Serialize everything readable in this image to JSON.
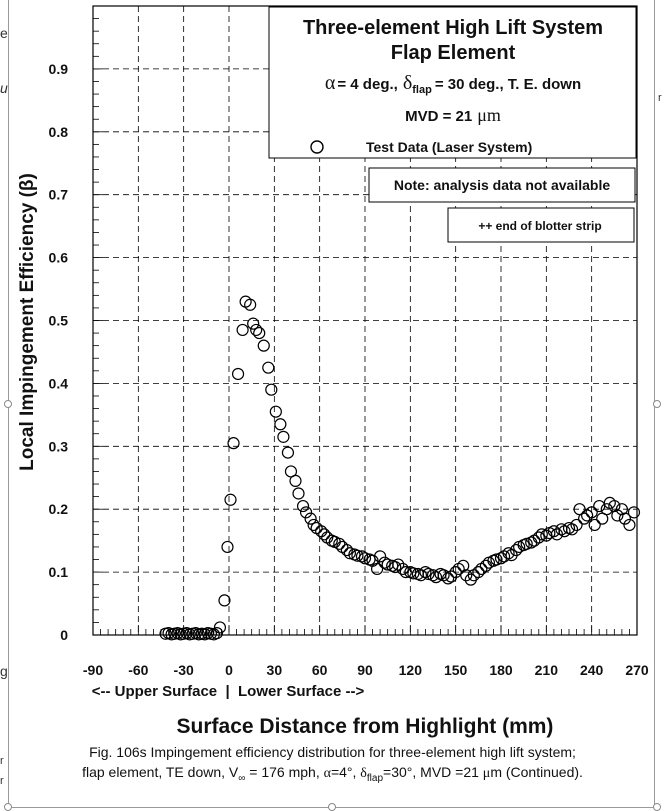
{
  "chart_data": {
    "type": "scatter",
    "title": [
      "Three-element High Lift System",
      "Flap Element"
    ],
    "conditions": {
      "alpha_symbol": "α",
      "alpha_value": "= 4 deg.,",
      "delta_symbol": "δ",
      "delta_sub": "flap",
      "delta_value": "= 30 deg., T. E. down",
      "mvd": "MVD = 21",
      "mvd_unit": "μm"
    },
    "legend": [
      {
        "marker": "open-circle",
        "label": "Test Data (Laser System)",
        "placement": "top-right"
      }
    ],
    "notes": [
      "Note: analysis data not available",
      "++ end of blotter strip"
    ],
    "xlabel": "Surface Distance from Highlight (mm)",
    "xsublabel": "<-- Upper Surface  |  Lower Surface -->",
    "ylabel": "Local Impingement Efficiency (β)",
    "xlim": [
      -90,
      270
    ],
    "ylim": [
      0,
      1
    ],
    "xticks": [
      -90,
      -60,
      -30,
      0,
      30,
      60,
      90,
      120,
      150,
      180,
      210,
      240,
      270
    ],
    "yticks": [
      0,
      0.1,
      0.2,
      0.3,
      0.4,
      0.5,
      0.6,
      0.7,
      0.8,
      0.9
    ],
    "ytick_labels": [
      "0",
      "0.1",
      "0.2",
      "0.3",
      "0.4",
      "0.5",
      "0.6",
      "0.7",
      "0.8",
      "0.9"
    ],
    "grid": true,
    "series": [
      {
        "name": "Test Data (Laser System)",
        "marker": "open-circle",
        "x": [
          -42,
          -40,
          -38,
          -36,
          -34,
          -32,
          -30,
          -28,
          -26,
          -24,
          -22,
          -20,
          -18,
          -16,
          -14,
          -12,
          -10,
          -8,
          -6,
          -3,
          -1,
          1,
          3,
          6,
          9,
          11,
          14,
          16,
          18,
          20,
          23,
          26,
          28,
          31,
          34,
          36,
          39,
          41,
          44,
          46,
          49,
          51,
          54,
          56,
          58,
          61,
          63,
          65,
          68,
          70,
          73,
          75,
          78,
          80,
          83,
          85,
          88,
          90,
          93,
          95,
          98,
          100,
          103,
          105,
          108,
          110,
          112,
          115,
          117,
          120,
          122,
          125,
          127,
          130,
          132,
          135,
          137,
          140,
          142,
          145,
          147,
          150,
          152,
          155,
          157,
          160,
          162,
          165,
          167,
          170,
          172,
          175,
          177,
          180,
          182,
          185,
          187,
          190,
          192,
          195,
          197,
          200,
          202,
          205,
          207,
          210,
          212,
          215,
          217,
          220,
          222,
          225,
          227,
          230,
          232,
          235,
          237,
          240,
          242,
          245,
          247,
          250,
          252,
          255,
          257,
          260,
          262,
          265,
          268
        ],
        "y": [
          0.002,
          0.003,
          0.001,
          0.002,
          0.003,
          0.001,
          0.002,
          0.003,
          0.001,
          0.002,
          0.003,
          0.001,
          0.002,
          0.001,
          0.003,
          0.002,
          0.001,
          0.003,
          0.012,
          0.055,
          0.14,
          0.215,
          0.305,
          0.415,
          0.485,
          0.53,
          0.525,
          0.495,
          0.485,
          0.48,
          0.46,
          0.425,
          0.39,
          0.355,
          0.335,
          0.315,
          0.29,
          0.26,
          0.245,
          0.225,
          0.205,
          0.195,
          0.185,
          0.175,
          0.17,
          0.165,
          0.16,
          0.155,
          0.15,
          0.148,
          0.145,
          0.14,
          0.135,
          0.13,
          0.128,
          0.126,
          0.125,
          0.122,
          0.12,
          0.118,
          0.105,
          0.125,
          0.115,
          0.112,
          0.11,
          0.108,
          0.112,
          0.105,
          0.1,
          0.1,
          0.098,
          0.097,
          0.095,
          0.1,
          0.097,
          0.095,
          0.092,
          0.097,
          0.095,
          0.09,
          0.093,
          0.1,
          0.105,
          0.11,
          0.095,
          0.088,
          0.095,
          0.1,
          0.105,
          0.11,
          0.115,
          0.118,
          0.12,
          0.122,
          0.125,
          0.13,
          0.127,
          0.135,
          0.14,
          0.143,
          0.145,
          0.147,
          0.15,
          0.155,
          0.16,
          0.158,
          0.162,
          0.165,
          0.16,
          0.168,
          0.165,
          0.17,
          0.168,
          0.175,
          0.2,
          0.185,
          0.19,
          0.195,
          0.175,
          0.205,
          0.185,
          0.2,
          0.21,
          0.205,
          0.19,
          0.2,
          0.185,
          0.175,
          0.195
        ]
      }
    ]
  },
  "caption": {
    "line1": "Fig. 106s  Impingement efficiency distribution for three-element high lift system;",
    "line2_a": "flap element, TE down, V",
    "line2_inf": "∞",
    "line2_b": " = 176 mph, ",
    "line2_alpha": "α",
    "line2_c": "=4°, ",
    "line2_delta": "δ",
    "line2_flap": "flap",
    "line2_d": "=30°,  MVD =21 ",
    "line2_mu": "μ",
    "line2_e": "m (Continued)."
  },
  "edge_marks": [
    "e",
    "u",
    "g",
    "r",
    "r",
    "r"
  ]
}
